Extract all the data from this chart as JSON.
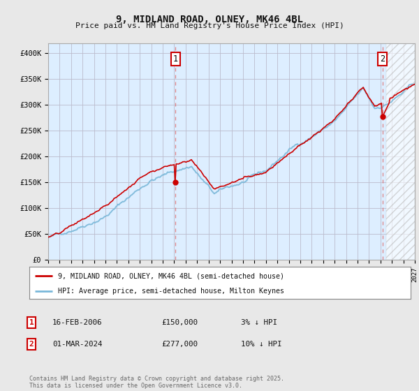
{
  "title": "9, MIDLAND ROAD, OLNEY, MK46 4BL",
  "subtitle": "Price paid vs. HM Land Registry's House Price Index (HPI)",
  "ylim": [
    0,
    420000
  ],
  "yticks": [
    0,
    50000,
    100000,
    150000,
    200000,
    250000,
    300000,
    350000,
    400000
  ],
  "ytick_labels": [
    "£0",
    "£50K",
    "£100K",
    "£150K",
    "£200K",
    "£250K",
    "£300K",
    "£350K",
    "£400K"
  ],
  "hpi_color": "#7ab8d9",
  "price_color": "#cc0000",
  "sale1_x": 2006.12,
  "sale1_y": 150000,
  "sale2_x": 2024.17,
  "sale2_y": 277000,
  "background_color": "#e8e8e8",
  "plot_background": "#ddeeff",
  "grid_color": "#bbbbcc",
  "vline_color": "#dd6666",
  "annotation_box_color": "#cc0000",
  "legend_label_price": "9, MIDLAND ROAD, OLNEY, MK46 4BL (semi-detached house)",
  "legend_label_hpi": "HPI: Average price, semi-detached house, Milton Keynes",
  "table_rows": [
    {
      "num": "1",
      "date": "16-FEB-2006",
      "price": "£150,000",
      "vs_hpi": "3% ↓ HPI"
    },
    {
      "num": "2",
      "date": "01-MAR-2024",
      "price": "£277,000",
      "vs_hpi": "10% ↓ HPI"
    }
  ],
  "footer": "Contains HM Land Registry data © Crown copyright and database right 2025.\nThis data is licensed under the Open Government Licence v3.0.",
  "xmin": 1995,
  "xmax": 2027,
  "hatch_start": 2024.5
}
